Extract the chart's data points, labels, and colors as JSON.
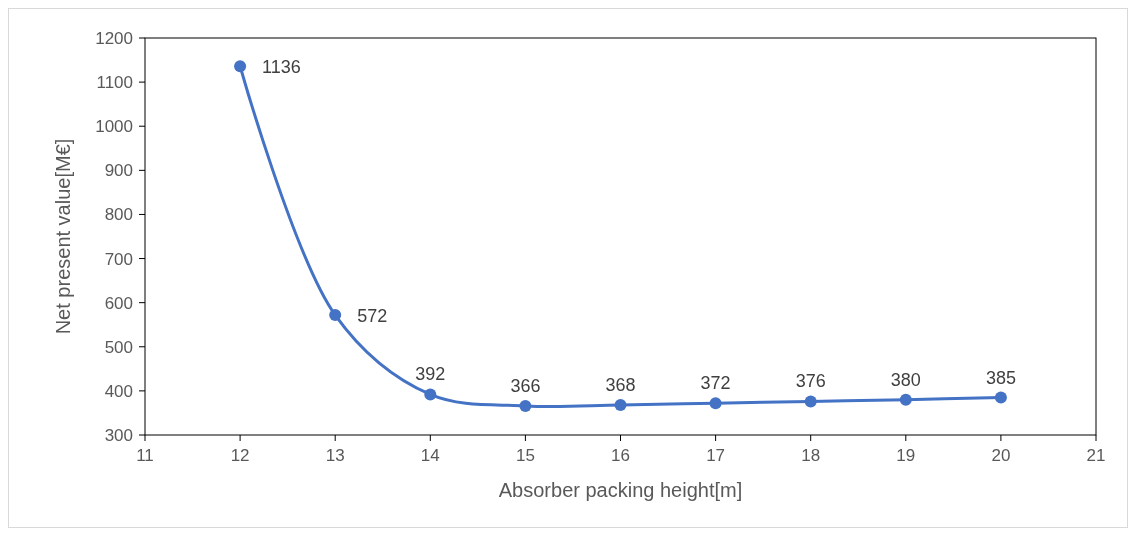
{
  "chart_data": {
    "type": "line",
    "xlabel": "Absorber packing height[m]",
    "ylabel": "Net present value[M€]",
    "x": [
      12,
      13,
      14,
      15,
      16,
      17,
      18,
      19,
      20
    ],
    "series": [
      {
        "color": "#4472c4",
        "values": [
          1136,
          572,
          392,
          366,
          368,
          372,
          376,
          380,
          385
        ]
      }
    ],
    "xlim": [
      11,
      21
    ],
    "xticks": [
      11,
      12,
      13,
      14,
      15,
      16,
      17,
      18,
      19,
      20,
      21
    ],
    "ylim": [
      300,
      1200
    ],
    "yticks": [
      300,
      400,
      500,
      600,
      700,
      800,
      900,
      1000,
      1100,
      1200
    ],
    "marker": "circle",
    "line_style": "solid",
    "data_labels": true
  }
}
